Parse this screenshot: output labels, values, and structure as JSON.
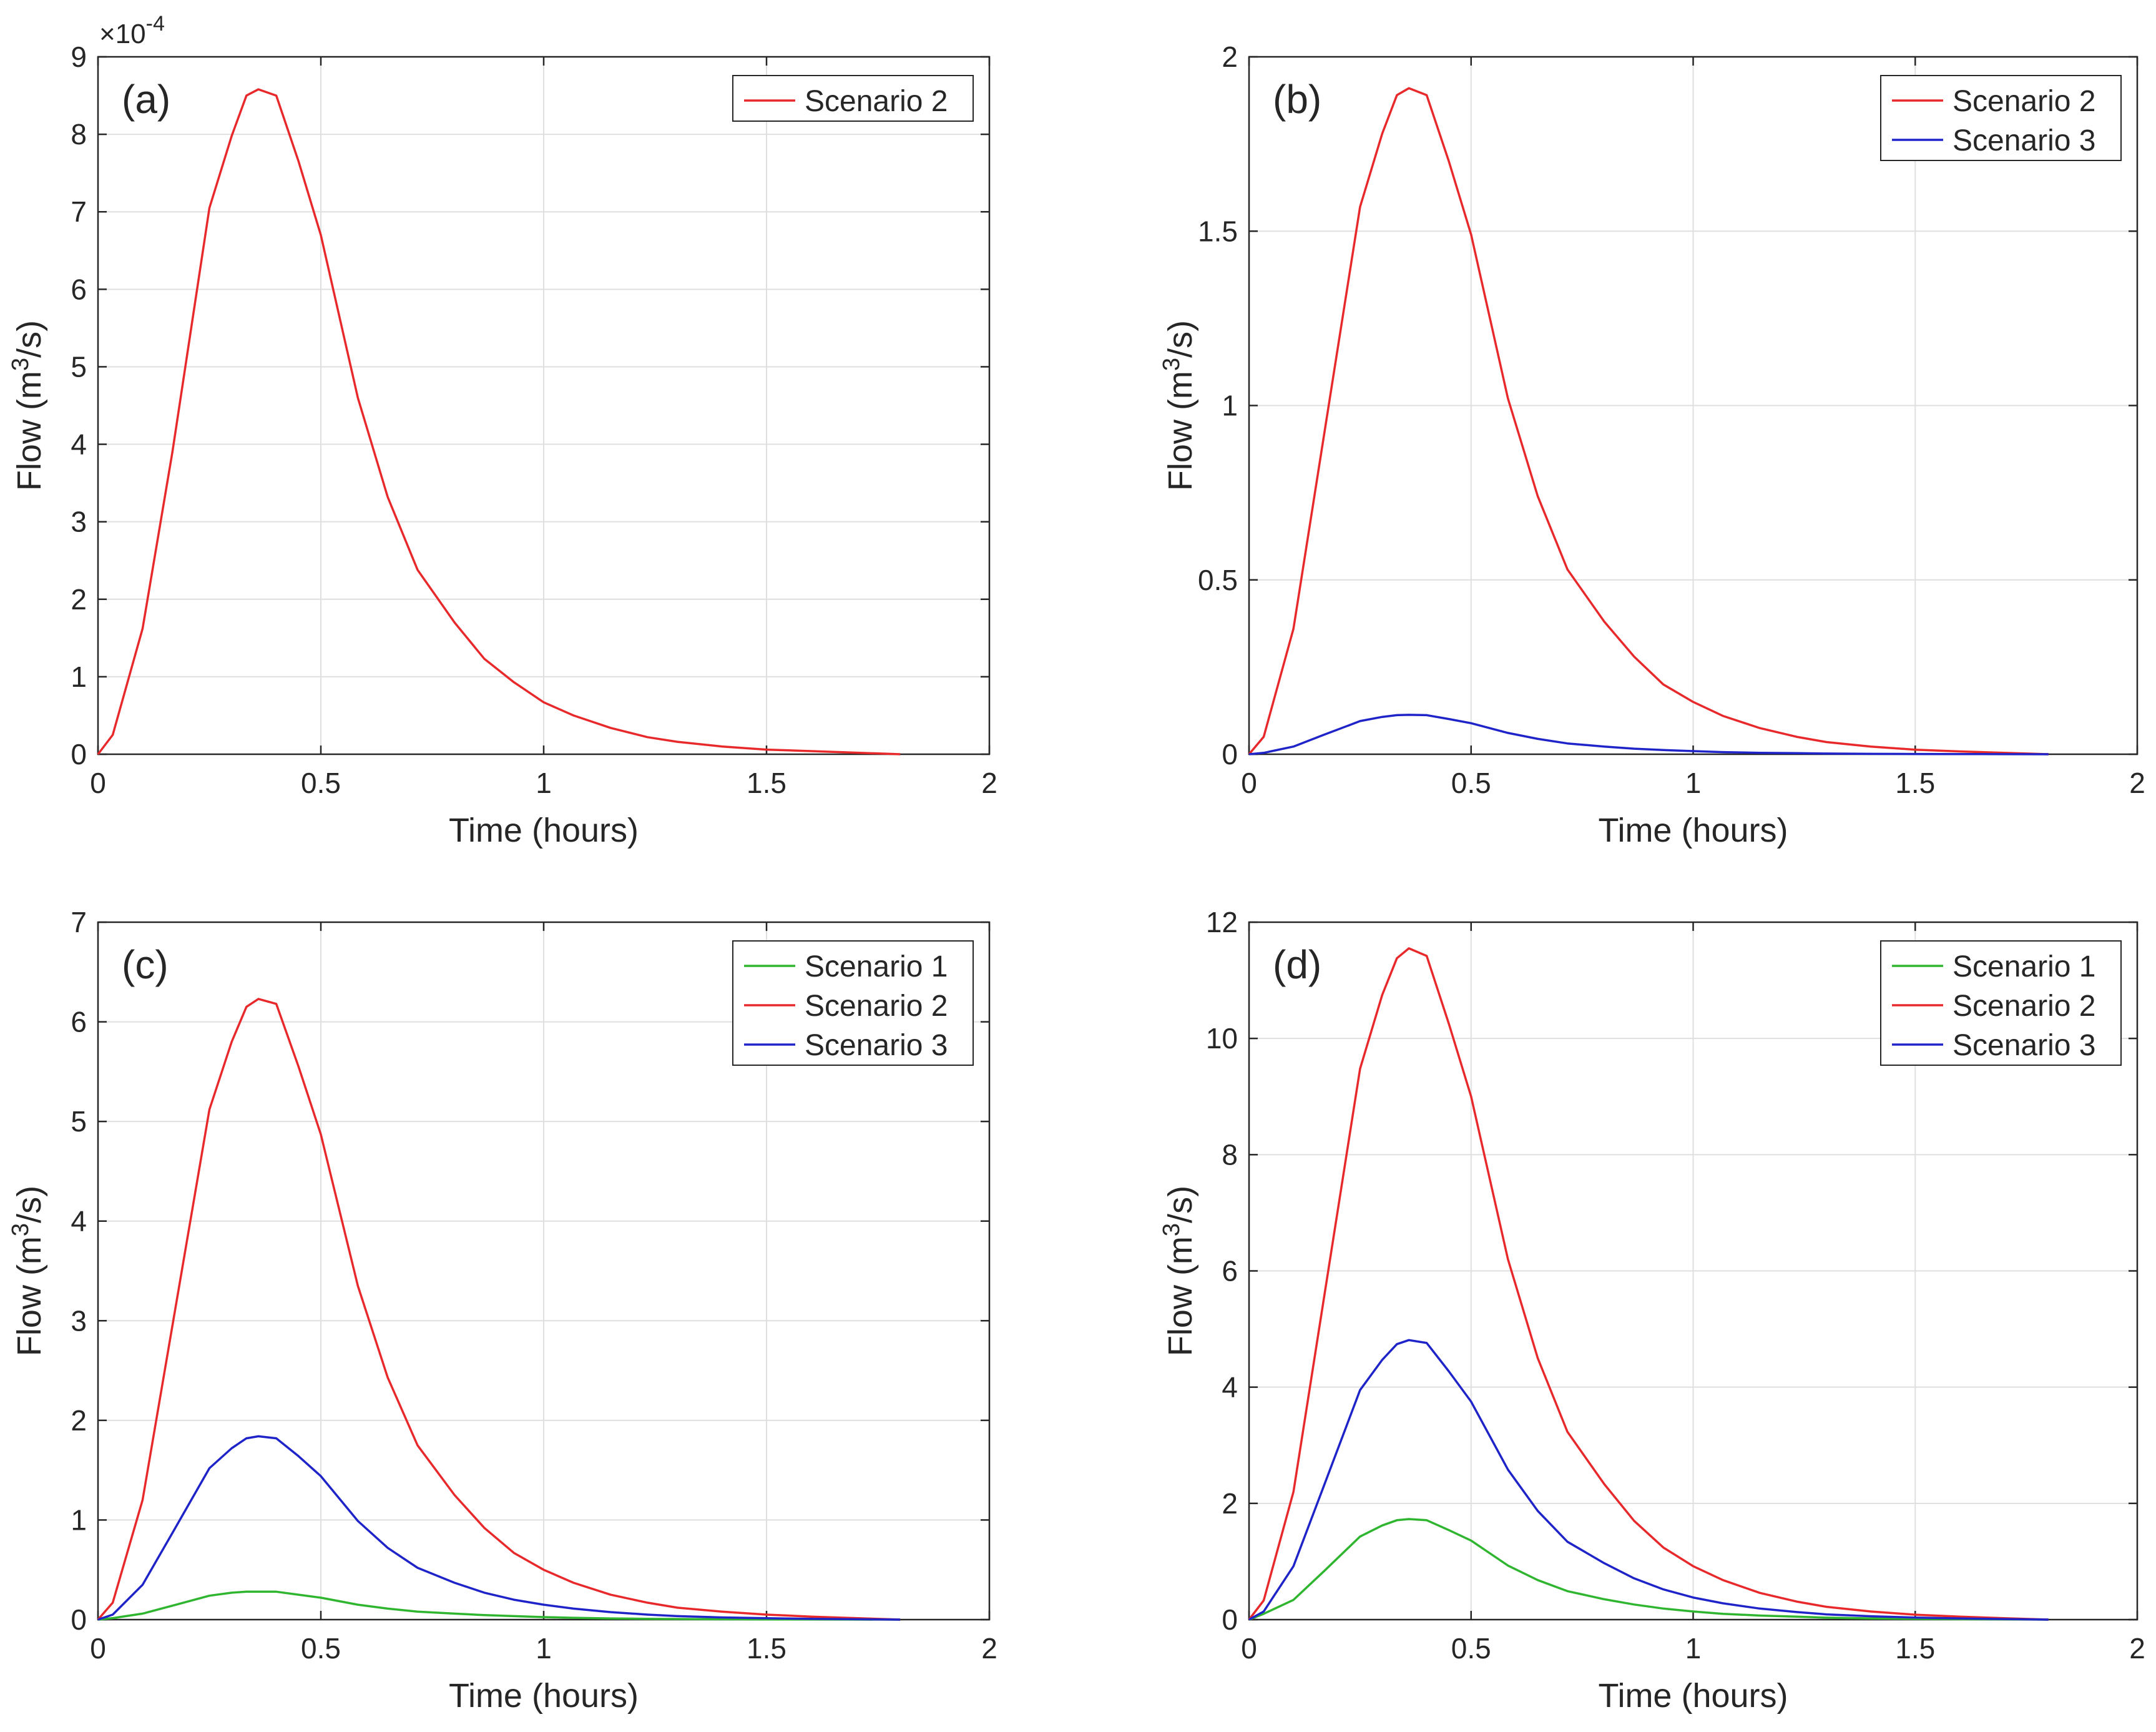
{
  "chart_data": [
    {
      "type": "line",
      "panel_label": "(a)",
      "xlabel": "Time (hours)",
      "ylabel_base": "Flow (m",
      "ylabel_sup": "3",
      "ylabel_tail": "/s)",
      "xlim": [
        0,
        2
      ],
      "ylim": [
        0,
        9
      ],
      "xticks": [
        0,
        0.5,
        1,
        1.5,
        2
      ],
      "yticks": [
        0,
        1,
        2,
        3,
        4,
        5,
        6,
        7,
        8,
        9
      ],
      "xtick_labels": [
        "0",
        "0.5",
        "1",
        "1.5",
        "2"
      ],
      "ytick_labels": [
        "0",
        "1",
        "2",
        "3",
        "4",
        "5",
        "6",
        "7",
        "8",
        "9"
      ],
      "y_multiplier": "×10",
      "y_multiplier_exp": "-4",
      "grid": true,
      "legend_position": "top-right",
      "x": [
        0,
        0.033,
        0.1,
        0.167,
        0.25,
        0.3,
        0.333,
        0.36,
        0.4,
        0.45,
        0.5,
        0.583,
        0.65,
        0.717,
        0.8,
        0.867,
        0.933,
        1.0,
        1.067,
        1.15,
        1.233,
        1.3,
        1.4,
        1.5,
        1.6,
        1.7,
        1.8
      ],
      "series": [
        {
          "name": "Scenario 2",
          "color": "#e8292b",
          "values": [
            0,
            0.25,
            1.62,
            3.9,
            7.05,
            7.98,
            8.5,
            8.58,
            8.5,
            7.65,
            6.7,
            4.6,
            3.32,
            2.38,
            1.7,
            1.23,
            0.93,
            0.67,
            0.5,
            0.34,
            0.22,
            0.16,
            0.1,
            0.06,
            0.04,
            0.02,
            0
          ]
        }
      ]
    },
    {
      "type": "line",
      "panel_label": "(b)",
      "xlabel": "Time (hours)",
      "ylabel_base": "Flow (m",
      "ylabel_sup": "3",
      "ylabel_tail": "/s)",
      "xlim": [
        0,
        2
      ],
      "ylim": [
        0,
        2
      ],
      "xticks": [
        0,
        0.5,
        1,
        1.5,
        2
      ],
      "yticks": [
        0,
        0.5,
        1,
        1.5,
        2
      ],
      "xtick_labels": [
        "0",
        "0.5",
        "1",
        "1.5",
        "2"
      ],
      "ytick_labels": [
        "0",
        "0.5",
        "1",
        "1.5",
        "2"
      ],
      "grid": true,
      "legend_position": "top-right",
      "x": [
        0,
        0.033,
        0.1,
        0.167,
        0.25,
        0.3,
        0.333,
        0.36,
        0.4,
        0.45,
        0.5,
        0.583,
        0.65,
        0.717,
        0.8,
        0.867,
        0.933,
        1.0,
        1.067,
        1.15,
        1.233,
        1.3,
        1.4,
        1.5,
        1.6,
        1.7,
        1.8
      ],
      "series": [
        {
          "name": "Scenario 2",
          "color": "#e8292b",
          "values": [
            0,
            0.05,
            0.36,
            0.9,
            1.57,
            1.78,
            1.89,
            1.91,
            1.89,
            1.7,
            1.49,
            1.02,
            0.74,
            0.53,
            0.38,
            0.28,
            0.2,
            0.15,
            0.11,
            0.075,
            0.05,
            0.035,
            0.022,
            0.013,
            0.008,
            0.004,
            0
          ]
        },
        {
          "name": "Scenario 3",
          "color": "#1f24c8",
          "values": [
            0,
            0.004,
            0.022,
            0.055,
            0.095,
            0.107,
            0.112,
            0.113,
            0.112,
            0.101,
            0.089,
            0.061,
            0.044,
            0.031,
            0.022,
            0.016,
            0.012,
            0.009,
            0.006,
            0.004,
            0.003,
            0.002,
            0.001,
            0.0008,
            0.0005,
            0.0002,
            0
          ]
        }
      ]
    },
    {
      "type": "line",
      "panel_label": "(c)",
      "xlabel": "Time (hours)",
      "ylabel_base": "Flow (m",
      "ylabel_sup": "3",
      "ylabel_tail": "/s)",
      "xlim": [
        0,
        2
      ],
      "ylim": [
        0,
        7
      ],
      "xticks": [
        0,
        0.5,
        1,
        1.5,
        2
      ],
      "yticks": [
        0,
        1,
        2,
        3,
        4,
        5,
        6,
        7
      ],
      "xtick_labels": [
        "0",
        "0.5",
        "1",
        "1.5",
        "2"
      ],
      "ytick_labels": [
        "0",
        "1",
        "2",
        "3",
        "4",
        "5",
        "6",
        "7"
      ],
      "grid": true,
      "legend_position": "top-right",
      "x": [
        0,
        0.033,
        0.1,
        0.167,
        0.25,
        0.3,
        0.333,
        0.36,
        0.4,
        0.45,
        0.5,
        0.583,
        0.65,
        0.717,
        0.8,
        0.867,
        0.933,
        1.0,
        1.067,
        1.15,
        1.233,
        1.3,
        1.4,
        1.5,
        1.6,
        1.7,
        1.8
      ],
      "series": [
        {
          "name": "Scenario 1",
          "color": "#2fb52f",
          "values": [
            0,
            0.015,
            0.06,
            0.14,
            0.24,
            0.27,
            0.28,
            0.28,
            0.28,
            0.25,
            0.22,
            0.15,
            0.11,
            0.08,
            0.06,
            0.045,
            0.035,
            0.025,
            0.018,
            0.012,
            0.008,
            0.006,
            0.004,
            0.002,
            0.001,
            0.0005,
            0
          ]
        },
        {
          "name": "Scenario 2",
          "color": "#e8292b",
          "values": [
            0,
            0.17,
            1.2,
            2.95,
            5.12,
            5.8,
            6.15,
            6.23,
            6.18,
            5.55,
            4.87,
            3.35,
            2.43,
            1.75,
            1.25,
            0.92,
            0.67,
            0.5,
            0.37,
            0.25,
            0.17,
            0.12,
            0.08,
            0.05,
            0.03,
            0.015,
            0
          ]
        },
        {
          "name": "Scenario 3",
          "color": "#1f24c8",
          "values": [
            0,
            0.05,
            0.35,
            0.87,
            1.52,
            1.72,
            1.82,
            1.84,
            1.82,
            1.64,
            1.44,
            0.99,
            0.72,
            0.52,
            0.37,
            0.27,
            0.2,
            0.15,
            0.11,
            0.075,
            0.05,
            0.035,
            0.022,
            0.014,
            0.008,
            0.004,
            0
          ]
        }
      ]
    },
    {
      "type": "line",
      "panel_label": "(d)",
      "xlabel": "Time (hours)",
      "ylabel_base": "Flow (m",
      "ylabel_sup": "3",
      "ylabel_tail": "/s)",
      "xlim": [
        0,
        2
      ],
      "ylim": [
        0,
        12
      ],
      "xticks": [
        0,
        0.5,
        1,
        1.5,
        2
      ],
      "yticks": [
        0,
        2,
        4,
        6,
        8,
        10,
        12
      ],
      "xtick_labels": [
        "0",
        "0.5",
        "1",
        "1.5",
        "2"
      ],
      "ytick_labels": [
        "0",
        "2",
        "4",
        "6",
        "8",
        "10",
        "12"
      ],
      "grid": true,
      "legend_position": "top-right",
      "x": [
        0,
        0.033,
        0.1,
        0.167,
        0.25,
        0.3,
        0.333,
        0.36,
        0.4,
        0.45,
        0.5,
        0.583,
        0.65,
        0.717,
        0.8,
        0.867,
        0.933,
        1.0,
        1.067,
        1.15,
        1.233,
        1.3,
        1.4,
        1.5,
        1.6,
        1.7,
        1.8
      ],
      "series": [
        {
          "name": "Scenario 1",
          "color": "#2fb52f",
          "values": [
            0,
            0.1,
            0.34,
            0.82,
            1.43,
            1.62,
            1.71,
            1.73,
            1.71,
            1.54,
            1.36,
            0.93,
            0.68,
            0.49,
            0.35,
            0.26,
            0.19,
            0.14,
            0.1,
            0.07,
            0.05,
            0.033,
            0.02,
            0.013,
            0.008,
            0.004,
            0
          ]
        },
        {
          "name": "Scenario 2",
          "color": "#e8292b",
          "values": [
            0,
            0.33,
            2.2,
            5.45,
            9.48,
            10.75,
            11.38,
            11.55,
            11.42,
            10.25,
            9.0,
            6.2,
            4.5,
            3.23,
            2.33,
            1.7,
            1.24,
            0.92,
            0.68,
            0.46,
            0.31,
            0.22,
            0.14,
            0.085,
            0.05,
            0.025,
            0
          ]
        },
        {
          "name": "Scenario 3",
          "color": "#1f24c8",
          "values": [
            0,
            0.14,
            0.92,
            2.27,
            3.95,
            4.47,
            4.74,
            4.81,
            4.76,
            4.27,
            3.75,
            2.58,
            1.87,
            1.34,
            0.97,
            0.71,
            0.52,
            0.38,
            0.28,
            0.19,
            0.13,
            0.09,
            0.058,
            0.035,
            0.02,
            0.01,
            0
          ]
        }
      ]
    }
  ]
}
